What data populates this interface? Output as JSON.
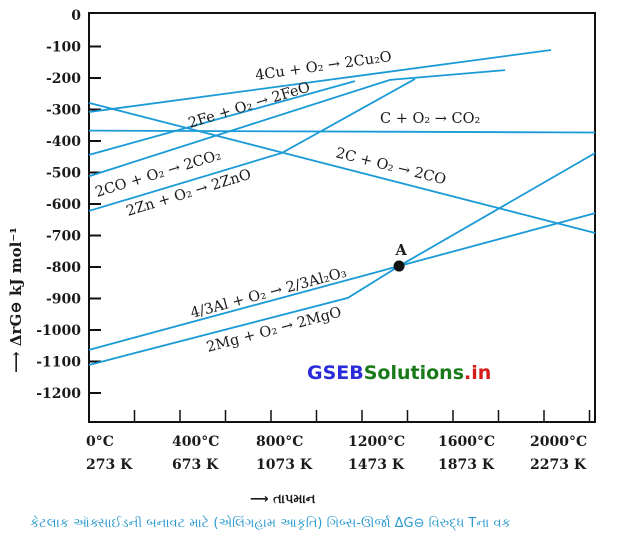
{
  "chart_data": {
    "type": "line",
    "xlabel": "⟶ તાપમાન",
    "ylabel": "⟶ ΔrG⊖ kJ mol⁻¹",
    "xlim": [
      0,
      2225
    ],
    "ylim": [
      -1290,
      6
    ],
    "grid": false,
    "line_color": "#1a9ad6",
    "y_ticks": [
      "0",
      "-100",
      "-200",
      "-300",
      "-400",
      "-500",
      "-600",
      "-700",
      "-800",
      "-900",
      "-1000",
      "-1100",
      "-1200"
    ],
    "y_tick_values": [
      0,
      -100,
      -200,
      -300,
      -400,
      -500,
      -600,
      -700,
      -800,
      -900,
      -1000,
      -1100,
      -1200
    ],
    "x_ticks_c": [
      "0°C",
      "400°C",
      "800°C",
      "1200°C",
      "1600°C",
      "2000°C"
    ],
    "x_ticks_k": [
      "273 K",
      "673 K",
      "1073 K",
      "1473 K",
      "1873 K",
      "2273 K"
    ],
    "x_tick_values": [
      0,
      400,
      800,
      1200,
      1600,
      2000
    ],
    "series": [
      {
        "name": "4Cu + O₂ → 2Cu₂O",
        "points": [
          [
            0,
            -308
          ],
          [
            2031,
            -111
          ]
        ]
      },
      {
        "name": "2Fe + O₂ → 2FeO",
        "points": [
          [
            0,
            -444
          ],
          [
            1169,
            -210
          ]
        ]
      },
      {
        "name": "C + O₂ → CO₂",
        "points": [
          [
            0,
            -367
          ],
          [
            2225,
            -373
          ]
        ]
      },
      {
        "name": "2CO + O₂ → 2CO₂",
        "points": [
          [
            0,
            -512
          ],
          [
            1323,
            -206
          ],
          [
            1829,
            -175
          ]
        ]
      },
      {
        "name": "2Zn + O₂ → 2ZnO",
        "points": [
          [
            0,
            -622
          ],
          [
            848,
            -438
          ],
          [
            1433,
            -203
          ]
        ]
      },
      {
        "name": "2C + O₂ → 2CO",
        "points": [
          [
            0,
            -279
          ],
          [
            2225,
            -692
          ]
        ]
      },
      {
        "name": "4/3Al + O₂ → 2/3Al₂O₃",
        "points": [
          [
            0,
            -1063
          ],
          [
            1363,
            -797
          ],
          [
            2225,
            -629
          ]
        ]
      },
      {
        "name": "2Mg + O₂ → 2MgO",
        "points": [
          [
            0,
            -1111
          ],
          [
            1138,
            -898
          ],
          [
            1363,
            -797
          ],
          [
            2225,
            -438
          ]
        ]
      }
    ],
    "annotations": [
      {
        "text": "A",
        "point": [
          1363,
          -797
        ]
      }
    ]
  },
  "watermark": {
    "part1": "GSEB",
    "part2": "Solutions",
    "part3": ".in",
    "colors": [
      "#2b2bd9",
      "#1a7a1a",
      "#d61a1a"
    ]
  },
  "caption": "કેટલાક ઑક્સાઈડની બનાવટ માટે (એલિંગહામ આકૃતિ) ગિબ્સ-ઊર્જા ΔG⊖ વિરુદ્ધ Tના વક"
}
